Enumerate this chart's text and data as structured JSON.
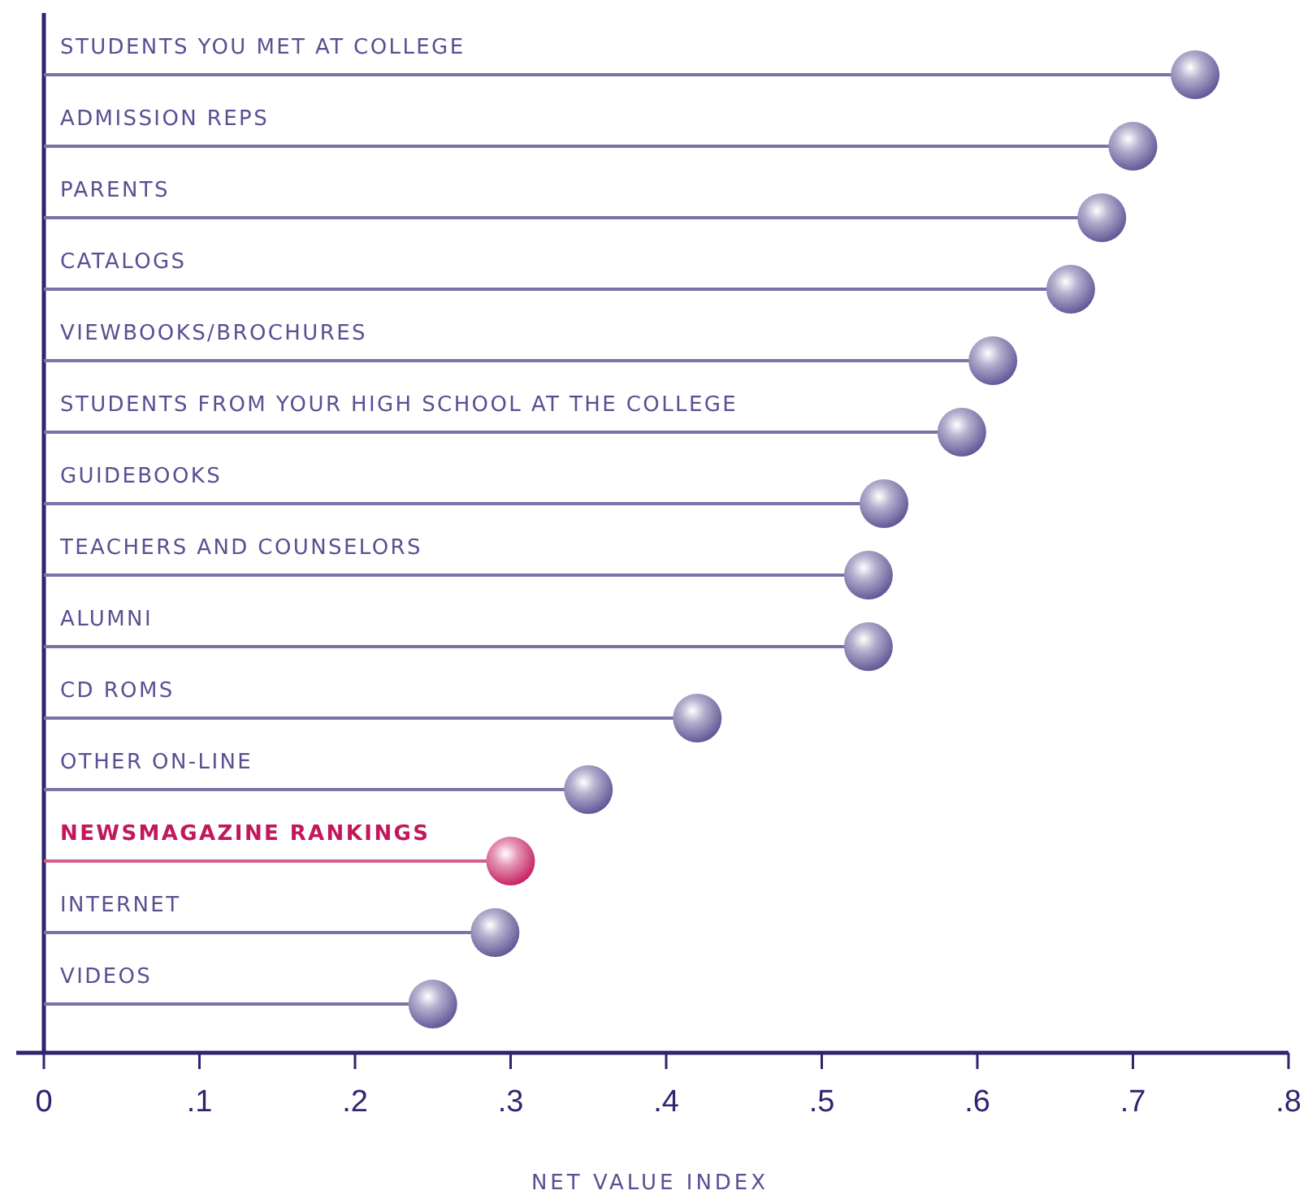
{
  "chart_data": {
    "type": "lollipop",
    "orientation": "horizontal",
    "xlabel": "NET VALUE INDEX",
    "categories": [
      "STUDENTS YOU MET AT COLLEGE",
      "ADMISSION REPS",
      "PARENTS",
      "CATALOGS",
      "VIEWBOOKS/BROCHURES",
      "STUDENTS FROM YOUR HIGH SCHOOL AT THE COLLEGE",
      "GUIDEBOOKS",
      "TEACHERS AND COUNSELORS",
      "ALUMNI",
      "CD ROMS",
      "OTHER ON-LINE",
      "NEWSMAGAZINE RANKINGS",
      "INTERNET",
      "VIDEOS"
    ],
    "values": [
      0.74,
      0.7,
      0.68,
      0.66,
      0.61,
      0.59,
      0.54,
      0.53,
      0.53,
      0.42,
      0.35,
      0.3,
      0.29,
      0.25
    ],
    "color": "#5b4f92",
    "colors": [
      "#5b4f92",
      "#5b4f92",
      "#5b4f92",
      "#5b4f92",
      "#5b4f92",
      "#5b4f92",
      "#5b4f92",
      "#5b4f92",
      "#5b4f92",
      "#5b4f92",
      "#5b4f92",
      "#c2185b",
      "#5b4f92",
      "#5b4f92"
    ],
    "xlim": [
      0,
      0.8
    ],
    "xticks": [
      0,
      {
        "value": 0.1,
        "label": ".1"
      },
      {
        "value": 0.2,
        "label": ".2"
      },
      {
        "value": 0.3,
        "label": ".3"
      },
      {
        "value": 0.4,
        "label": ".4"
      },
      {
        "value": 0.5,
        "label": ".5"
      },
      {
        "value": 0.6,
        "label": ".6"
      },
      {
        "value": 0.7,
        "label": ".7"
      },
      {
        "value": 0.8,
        "label": ".8"
      }
    ],
    "marker": "circle"
  }
}
